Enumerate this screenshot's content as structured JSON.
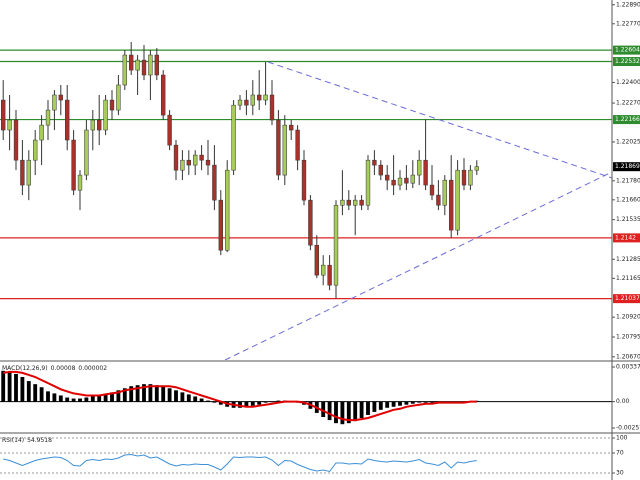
{
  "chart_data": [
    {
      "type": "candlestick",
      "ylim": [
        1.2065,
        1.2292
      ],
      "yticks": [
        {
          "value": 1.2289,
          "label": "1.22890"
        },
        {
          "value": 1.2277,
          "label": "1.22770"
        },
        {
          "value": 1.224,
          "label": "1.22400"
        },
        {
          "value": 1.2227,
          "label": "1.22270"
        },
        1.22025,
        {
          "value": 1.2178,
          "label": "1.21780"
        },
        {
          "value": 1.2166,
          "label": "1.21660"
        },
        1.21535,
        1.21285,
        1.21165,
        {
          "value": 1.2092,
          "label": "1.20920"
        },
        1.20795,
        {
          "value": 1.2067,
          "label": "1.20670"
        }
      ],
      "up_color": "#a8cc5a",
      "down_color": "#a8322a",
      "levels": [
        {
          "value": 1.22604,
          "color": "#2e8b2e"
        },
        {
          "value": 1.22532,
          "color": "#2e8b2e"
        },
        {
          "value": 1.22166,
          "color": "#2e8b2e"
        },
        {
          "value": 1.2142,
          "color": "#e02020"
        },
        {
          "value": 1.21037,
          "color": "#e02020"
        }
      ],
      "ohlc": [
        [
          1.22289,
          1.22415,
          1.22037,
          1.221
        ],
        [
          1.221,
          1.22321,
          1.21973,
          1.22163
        ],
        [
          1.22163,
          1.22226,
          1.21847,
          1.2191
        ],
        [
          1.2191,
          1.22037,
          1.2169,
          1.21753
        ],
        [
          1.21753,
          1.21973,
          1.21658,
          1.2191
        ],
        [
          1.2191,
          1.221,
          1.21816,
          1.22037
        ],
        [
          1.22037,
          1.22194,
          1.21879,
          1.22131
        ],
        [
          1.22131,
          1.22289,
          1.22037,
          1.22226
        ],
        [
          1.22226,
          1.22352,
          1.221,
          1.22321
        ],
        [
          1.22321,
          1.22384,
          1.22194,
          1.22289
        ],
        [
          1.22289,
          1.22384,
          1.21973,
          1.22037
        ],
        [
          1.22037,
          1.221,
          1.2169,
          1.21721
        ],
        [
          1.21721,
          1.21847,
          1.21595,
          1.21816
        ],
        [
          1.21816,
          1.22163,
          1.21784,
          1.221
        ],
        [
          1.221,
          1.22226,
          1.21973,
          1.22163
        ],
        [
          1.22163,
          1.22321,
          1.22005,
          1.221
        ],
        [
          1.221,
          1.22321,
          1.22068,
          1.22289
        ],
        [
          1.22289,
          1.22352,
          1.22163,
          1.22226
        ],
        [
          1.22226,
          1.22447,
          1.22194,
          1.22384
        ],
        [
          1.22384,
          1.22604,
          1.22352,
          1.22573
        ],
        [
          1.22573,
          1.22655,
          1.22447,
          1.22478
        ],
        [
          1.22478,
          1.22573,
          1.22321,
          1.22541
        ],
        [
          1.22541,
          1.22636,
          1.22415,
          1.22447
        ],
        [
          1.22447,
          1.22604,
          1.22289,
          1.22573
        ],
        [
          1.22573,
          1.22617,
          1.22415,
          1.22447
        ],
        [
          1.22447,
          1.22478,
          1.22163,
          1.22194
        ],
        [
          1.22194,
          1.22226,
          1.21973,
          1.22005
        ],
        [
          1.22005,
          1.22037,
          1.21784,
          1.21847
        ],
        [
          1.21847,
          1.21973,
          1.21784,
          1.2191
        ],
        [
          1.2191,
          1.21973,
          1.21816,
          1.21879
        ],
        [
          1.21879,
          1.21973,
          1.21816,
          1.21942
        ],
        [
          1.21942,
          1.22005,
          1.21847,
          1.2191
        ],
        [
          1.2191,
          1.22037,
          1.21816,
          1.21879
        ],
        [
          1.21879,
          1.22005,
          1.21595,
          1.21658
        ],
        [
          1.21658,
          1.21721,
          1.21311,
          1.21342
        ],
        [
          1.21342,
          1.2191,
          1.2133,
          1.21847
        ],
        [
          1.21847,
          1.22289,
          1.21816,
          1.22257
        ],
        [
          1.22257,
          1.22321,
          1.22226,
          1.22289
        ],
        [
          1.22289,
          1.22352,
          1.22194,
          1.22257
        ],
        [
          1.22257,
          1.22415,
          1.22194,
          1.22321
        ],
        [
          1.22321,
          1.22478,
          1.22226,
          1.22289
        ],
        [
          1.22289,
          1.22529,
          1.22257,
          1.22321
        ],
        [
          1.22321,
          1.22415,
          1.22131,
          1.22163
        ],
        [
          1.22163,
          1.22226,
          1.21784,
          1.21816
        ],
        [
          1.21816,
          1.22194,
          1.21753,
          1.22131
        ],
        [
          1.22131,
          1.22163,
          1.22037,
          1.221
        ],
        [
          1.221,
          1.22131,
          1.21847,
          1.2191
        ],
        [
          1.2191,
          1.21973,
          1.21626,
          1.21658
        ],
        [
          1.21658,
          1.2169,
          1.21342,
          1.21374
        ],
        [
          1.21374,
          1.21437,
          1.21166,
          1.21185
        ],
        [
          1.21185,
          1.21311,
          1.21122,
          1.21248
        ],
        [
          1.21248,
          1.21311,
          1.2109,
          1.21122
        ],
        [
          1.21122,
          1.21658,
          1.21037,
          1.21626
        ],
        [
          1.21626,
          1.21847,
          1.21563,
          1.21658
        ],
        [
          1.21658,
          1.21721,
          1.21595,
          1.21626
        ],
        [
          1.21626,
          1.2169,
          1.21437,
          1.21658
        ],
        [
          1.21658,
          1.2169,
          1.21595,
          1.21626
        ],
        [
          1.21626,
          1.21942,
          1.21595,
          1.2191
        ],
        [
          1.2191,
          1.21973,
          1.21816,
          1.21879
        ],
        [
          1.21879,
          1.2191,
          1.21784,
          1.21816
        ],
        [
          1.21816,
          1.21879,
          1.21721,
          1.21784
        ],
        [
          1.21784,
          1.21942,
          1.2169,
          1.21753
        ],
        [
          1.21753,
          1.21847,
          1.21721,
          1.21797
        ],
        [
          1.21797,
          1.21879,
          1.21721,
          1.21765
        ],
        [
          1.21765,
          1.2191,
          1.21734,
          1.21816
        ],
        [
          1.21816,
          1.21973,
          1.21753,
          1.2191
        ],
        [
          1.2191,
          1.22166,
          1.21721,
          1.21753
        ],
        [
          1.21753,
          1.21879,
          1.21658,
          1.2169
        ],
        [
          1.2169,
          1.21784,
          1.21595,
          1.21626
        ],
        [
          1.21626,
          1.21816,
          1.21563,
          1.21784
        ],
        [
          1.21784,
          1.21942,
          1.2142,
          1.21469
        ],
        [
          1.21469,
          1.2191,
          1.21437,
          1.21847
        ],
        [
          1.21847,
          1.21923,
          1.21721,
          1.21753
        ],
        [
          1.21753,
          1.21879,
          1.21721,
          1.21847
        ],
        [
          1.21847,
          1.2191,
          1.21816,
          1.21869
        ]
      ]
    },
    {
      "type": "macd",
      "label": "MACD(12,26,9)",
      "ylim": [
        -0.00296,
        0.00386
      ],
      "yticks": [
        0.00337,
        {
          "value": 0,
          "label": "0.00"
        },
        -0.00257
      ],
      "series": [
        {
          "color": "#000000",
          "values": [
            0.003,
            0.0029,
            0.0027,
            0.0024,
            0.002,
            0.0017,
            0.0014,
            0.001,
            0.0008,
            0.0006,
            0.0004,
            0.0003,
            0.0003,
            0.0004,
            0.0005,
            0.0006,
            0.0007,
            0.0009,
            0.0011,
            0.0013,
            0.0015,
            0.0016,
            0.0017,
            0.0017,
            0.0016,
            0.0015,
            0.0013,
            0.0011,
            0.0009,
            0.0007,
            0.0005,
            0.0003,
            0.0001,
            -0.0001,
            -0.0003,
            -0.0005,
            -0.0006,
            -0.0006,
            -0.0005,
            -0.0004,
            -0.0003,
            -0.0001,
            0,
            0.0001,
            0.0001,
            0,
            -0.0001,
            -0.0003,
            -0.0007,
            -0.0011,
            -0.0015,
            -0.0018,
            -0.0021,
            -0.0022,
            -0.0021,
            -0.0019,
            -0.0016,
            -0.0013,
            -0.001,
            -0.0008,
            -0.0006,
            -0.0005,
            -0.0004,
            -0.0003,
            -0.0002,
            -0.0001,
            -0.0001,
            -0.0001,
            -0.0001,
            -0.0001,
            -0.0001,
            -0.0001,
            0,
            0,
            8e-05
          ]
        },
        {
          "color": "#e00000",
          "values": [
            0.0028,
            0.0029,
            0.0029,
            0.0028,
            0.0026,
            0.0024,
            0.0021,
            0.0018,
            0.0015,
            0.0012,
            0.001,
            0.0008,
            0.0007,
            0.0006,
            0.0006,
            0.0006,
            0.0007,
            0.0008,
            0.0009,
            0.0011,
            0.0012,
            0.0013,
            0.0014,
            0.0015,
            0.0015,
            0.0015,
            0.0015,
            0.0014,
            0.0012,
            0.001,
            0.0008,
            0.0006,
            0.0004,
            0.0002,
            0,
            -0.0002,
            -0.0003,
            -0.0004,
            -0.0005,
            -0.0005,
            -0.0004,
            -0.0003,
            -0.0002,
            -0.0001,
            0,
            0,
            0,
            -0.0001,
            -0.0003,
            -0.0006,
            -0.0009,
            -0.0012,
            -0.0015,
            -0.0017,
            -0.0018,
            -0.0018,
            -0.0017,
            -0.0016,
            -0.0014,
            -0.0012,
            -0.001,
            -0.0008,
            -0.0007,
            -0.0005,
            -0.0004,
            -0.0003,
            -0.0002,
            -0.0002,
            -0.0001,
            -0.0001,
            -0.0001,
            -0.0001,
            -0.0001,
            0,
            2e-06
          ]
        }
      ]
    },
    {
      "type": "line",
      "label": "RSI(14)",
      "ylim": [
        16,
        108
      ],
      "yticks": [
        100,
        70,
        30
      ],
      "grid": true,
      "series": [
        {
          "color": "#3d8fd6",
          "values": [
            58,
            55,
            50,
            45,
            50,
            55,
            58,
            60,
            62,
            61,
            55,
            45,
            44,
            55,
            57,
            55,
            58,
            57,
            60,
            66,
            67,
            64,
            66,
            60,
            62,
            55,
            48,
            44,
            47,
            46,
            48,
            47,
            47,
            42,
            36,
            48,
            62,
            61,
            62,
            62,
            61,
            62,
            56,
            45,
            55,
            54,
            47,
            42,
            37,
            34,
            36,
            33,
            50,
            50,
            48,
            49,
            48,
            58,
            55,
            53,
            52,
            54,
            53,
            52,
            54,
            57,
            50,
            48,
            45,
            52,
            40,
            52,
            50,
            53,
            54.9518
          ]
        }
      ]
    }
  ]
}
